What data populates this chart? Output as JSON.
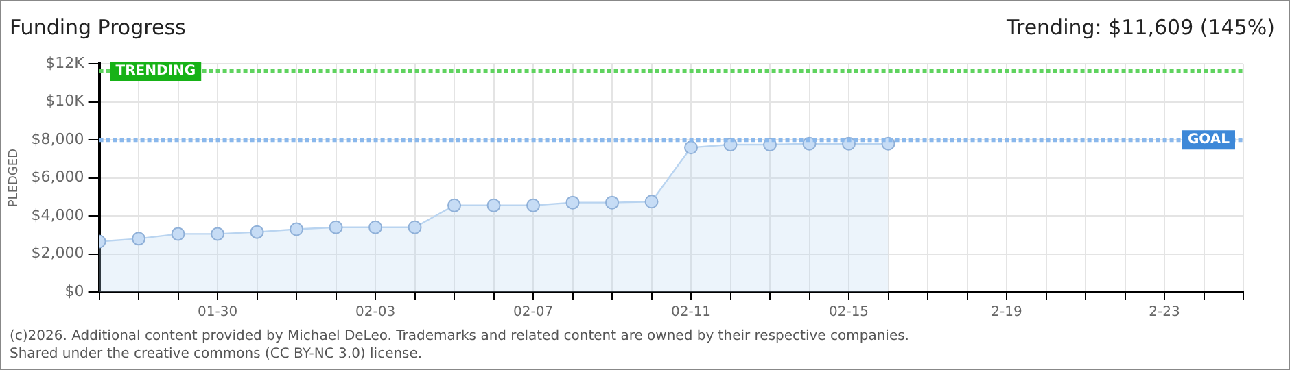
{
  "chart_data": {
    "type": "area",
    "title": "Funding Progress",
    "subtitle": "Trending: $11,609 (145%)",
    "ylabel": "PLEDGED",
    "x": [
      "--01-27",
      "--01-28",
      "--01-29",
      "--01-30",
      "--01-31",
      "--02-01",
      "--02-02",
      "--02-03",
      "--02-04",
      "--02-05",
      "--02-06",
      "--02-07",
      "--02-08",
      "--02-09",
      "--02-10",
      "--02-11",
      "--02-12",
      "--02-13",
      "--02-14",
      "--02-15",
      "--02-16"
    ],
    "series": [
      {
        "color": "#b9d4f0",
        "values": [
          2650,
          2800,
          3050,
          3050,
          3150,
          3300,
          3400,
          3400,
          3400,
          4550,
          4550,
          4550,
          4700,
          4700,
          4750,
          7600,
          7750,
          7750,
          7800,
          7800,
          7800
        ]
      }
    ],
    "xlim": [
      "--01-27",
      "--02-25"
    ],
    "xticks": [
      {
        "value": "--01-27",
        "label": null
      },
      {
        "value": "--01-28",
        "label": null
      },
      {
        "value": "--01-29",
        "label": null
      },
      {
        "value": "--01-30",
        "label": "01-30"
      },
      {
        "value": "--01-31",
        "label": null
      },
      {
        "value": "--02-01",
        "label": null
      },
      {
        "value": "--02-02",
        "label": null
      },
      {
        "value": "--02-03",
        "label": "02-03"
      },
      {
        "value": "--02-04",
        "label": null
      },
      {
        "value": "--02-05",
        "label": null
      },
      {
        "value": "--02-06",
        "label": null
      },
      {
        "value": "--02-07",
        "label": "02-07"
      },
      {
        "value": "--02-08",
        "label": null
      },
      {
        "value": "--02-09",
        "label": null
      },
      {
        "value": "--02-10",
        "label": null
      },
      {
        "value": "--02-11",
        "label": "02-11"
      },
      {
        "value": "--02-12",
        "label": null
      },
      {
        "value": "--02-13",
        "label": null
      },
      {
        "value": "--02-14",
        "label": null
      },
      {
        "value": "--02-15",
        "label": "02-15"
      },
      {
        "value": "--02-16",
        "label": null
      },
      {
        "value": "--02-17",
        "label": null
      },
      {
        "value": "--02-18",
        "label": null
      },
      {
        "value": "--02-19",
        "label": "2-19"
      },
      {
        "value": "--02-20",
        "label": null
      },
      {
        "value": "--02-21",
        "label": null
      },
      {
        "value": "--02-22",
        "label": null
      },
      {
        "value": "--02-23",
        "label": "2-23"
      },
      {
        "value": "--02-24",
        "label": null
      },
      {
        "value": "--02-25",
        "label": null
      }
    ],
    "ylim": [
      0,
      12000
    ],
    "yticks": [
      {
        "value": 0,
        "label": "$0"
      },
      {
        "value": 2000,
        "label": "$2,000"
      },
      {
        "value": 4000,
        "label": "$4,000"
      },
      {
        "value": 6000,
        "label": "$6,000"
      },
      {
        "value": 8000,
        "label": "$8,000"
      },
      {
        "value": 10000,
        "label": "$10K"
      },
      {
        "value": 12000,
        "label": "$12K"
      }
    ],
    "ref_lines": [
      {
        "axis": "y",
        "value": 11609,
        "label": "TRENDING",
        "color": "#5fd35f",
        "line_style": "dotted"
      },
      {
        "axis": "y",
        "value": 8000,
        "label": "GOAL",
        "color": "#8ab8ec",
        "line_style": "dotted"
      }
    ],
    "grid": true,
    "legend": false,
    "marker": "circle",
    "annotations": [
      "(c)2026. Additional content provided by Michael DeLeo. Trademarks and related content are owned by their respective companies.",
      "Shared under the creative commons (CC BY-NC 3.0) license."
    ]
  }
}
